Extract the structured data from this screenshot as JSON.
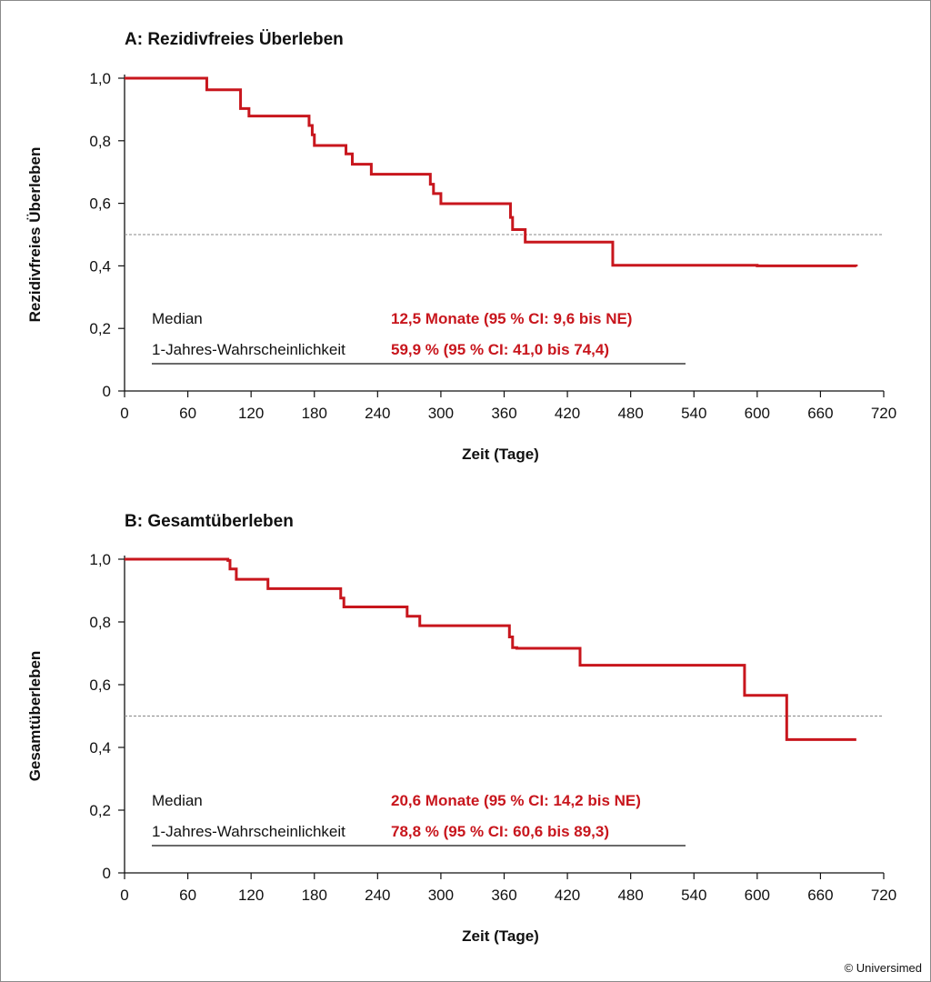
{
  "credit": "© Universimed",
  "chart_data": [
    {
      "type": "line",
      "step": true,
      "title": "A: Rezidivfreies Überleben",
      "xlabel": "Zeit (Tage)",
      "ylabel": "Rezidivfreies Überleben",
      "xlim": [
        0,
        720
      ],
      "ylim": [
        0,
        1
      ],
      "xticks": [
        "0",
        "60",
        "120",
        "180",
        "240",
        "300",
        "360",
        "420",
        "480",
        "540",
        "600",
        "660",
        "720"
      ],
      "yticks": [
        "0",
        "0,2",
        "0,4",
        "0,6",
        "0,8",
        "1,0"
      ],
      "reference_line": 0.5,
      "color": "#c8161d",
      "series": [
        {
          "x": [
            0,
            78,
            107,
            110,
            118,
            173,
            175,
            178,
            180,
            206,
            210,
            216,
            224,
            234,
            270,
            290,
            293,
            300,
            350,
            366,
            368,
            372,
            380,
            390,
            420,
            463,
            468,
            600,
            694
          ],
          "y": [
            1.0,
            0.963,
            0.963,
            0.903,
            0.879,
            0.879,
            0.849,
            0.819,
            0.785,
            0.785,
            0.758,
            0.725,
            0.725,
            0.693,
            0.693,
            0.661,
            0.631,
            0.599,
            0.599,
            0.555,
            0.516,
            0.516,
            0.476,
            0.476,
            0.476,
            0.402,
            0.402,
            0.4,
            0.398
          ]
        }
      ],
      "annotations": [
        {
          "label": "Median",
          "value": "12,5 Monate (95 % CI: 9,6 bis NE)"
        },
        {
          "label": "1-Jahres-Wahrscheinlichkeit",
          "value": "59,9 % (95 % CI: 41,0 bis 74,4)"
        }
      ]
    },
    {
      "type": "line",
      "step": true,
      "title": "B: Gesamtüberleben",
      "xlabel": "Zeit (Tage)",
      "ylabel": "Gesamtüberleben",
      "xlim": [
        0,
        720
      ],
      "ylim": [
        0,
        1
      ],
      "xticks": [
        "0",
        "60",
        "120",
        "180",
        "240",
        "300",
        "360",
        "420",
        "480",
        "540",
        "600",
        "660",
        "720"
      ],
      "yticks": [
        "0",
        "0,2",
        "0,4",
        "0,6",
        "0,8",
        "1,0"
      ],
      "reference_line": 0.5,
      "color": "#c8161d",
      "series": [
        {
          "x": [
            0,
            98,
            100,
            106,
            132,
            136,
            200,
            205,
            208,
            240,
            268,
            280,
            310,
            360,
            365,
            368,
            372,
            400,
            432,
            450,
            540,
            588,
            620,
            628,
            650,
            694
          ],
          "y": [
            1.0,
            0.996,
            0.969,
            0.936,
            0.936,
            0.906,
            0.906,
            0.876,
            0.848,
            0.848,
            0.818,
            0.788,
            0.788,
            0.788,
            0.752,
            0.718,
            0.716,
            0.716,
            0.662,
            0.662,
            0.662,
            0.566,
            0.566,
            0.425,
            0.425,
            0.425
          ]
        }
      ],
      "annotations": [
        {
          "label": "Median",
          "value": "20,6 Monate (95 % CI: 14,2 bis NE)"
        },
        {
          "label": "1-Jahres-Wahrscheinlichkeit",
          "value": "78,8 % (95 % CI: 60,6 bis 89,3)"
        }
      ]
    }
  ]
}
